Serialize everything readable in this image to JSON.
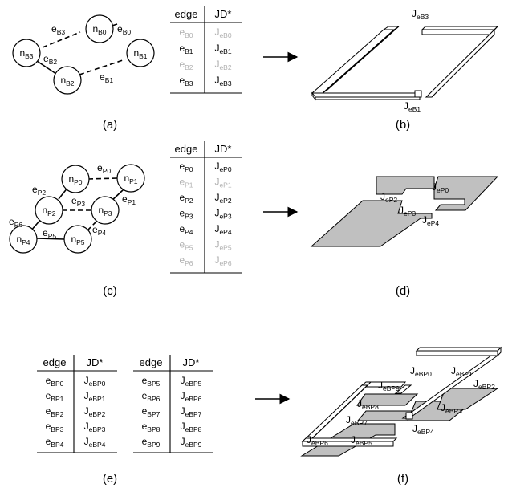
{
  "panels": {
    "a": "(a)",
    "b": "(b)",
    "c": "(c)",
    "d": "(d)",
    "e": "(e)",
    "f": "(f)"
  },
  "arrow_symbol": "→",
  "table_headers": {
    "edge": "edge",
    "jd": "JD*"
  },
  "graph_a": {
    "nodes": [
      {
        "base": "n",
        "sub": "B0"
      },
      {
        "base": "n",
        "sub": "B1"
      },
      {
        "base": "n",
        "sub": "B2"
      },
      {
        "base": "n",
        "sub": "B3"
      }
    ],
    "edges": [
      {
        "base": "e",
        "sub": "B3"
      },
      {
        "base": "e",
        "sub": "B0"
      },
      {
        "base": "e",
        "sub": "B2"
      },
      {
        "base": "e",
        "sub": "B1"
      }
    ]
  },
  "table_a": [
    {
      "edge_base": "e",
      "edge_sub": "B0",
      "jd_base": "J",
      "jd_sub": "eB0",
      "muted": true
    },
    {
      "edge_base": "e",
      "edge_sub": "B1",
      "jd_base": "J",
      "jd_sub": "eB1",
      "muted": false
    },
    {
      "edge_base": "e",
      "edge_sub": "B2",
      "jd_base": "J",
      "jd_sub": "eB2",
      "muted": true
    },
    {
      "edge_base": "e",
      "edge_sub": "B3",
      "jd_base": "J",
      "jd_sub": "eB3",
      "muted": false
    }
  ],
  "structure_b": {
    "labels": [
      {
        "base": "J",
        "sub": "eB3"
      },
      {
        "base": "J",
        "sub": "eB1"
      }
    ]
  },
  "graph_c": {
    "nodes": [
      {
        "base": "n",
        "sub": "P0"
      },
      {
        "base": "n",
        "sub": "P1"
      },
      {
        "base": "n",
        "sub": "P2"
      },
      {
        "base": "n",
        "sub": "P3"
      },
      {
        "base": "n",
        "sub": "P4"
      },
      {
        "base": "n",
        "sub": "P5"
      }
    ],
    "edges": [
      {
        "base": "e",
        "sub": "P0"
      },
      {
        "base": "e",
        "sub": "P2"
      },
      {
        "base": "e",
        "sub": "P3"
      },
      {
        "base": "e",
        "sub": "P1"
      },
      {
        "base": "e",
        "sub": "P6"
      },
      {
        "base": "e",
        "sub": "P4"
      },
      {
        "base": "e",
        "sub": "P5"
      }
    ]
  },
  "table_c": [
    {
      "edge_base": "e",
      "edge_sub": "P0",
      "jd_base": "J",
      "jd_sub": "eP0",
      "muted": false
    },
    {
      "edge_base": "e",
      "edge_sub": "P1",
      "jd_base": "J",
      "jd_sub": "eP1",
      "muted": true
    },
    {
      "edge_base": "e",
      "edge_sub": "P2",
      "jd_base": "J",
      "jd_sub": "eP2",
      "muted": false
    },
    {
      "edge_base": "e",
      "edge_sub": "P3",
      "jd_base": "J",
      "jd_sub": "eP3",
      "muted": false
    },
    {
      "edge_base": "e",
      "edge_sub": "P4",
      "jd_base": "J",
      "jd_sub": "eP4",
      "muted": false
    },
    {
      "edge_base": "e",
      "edge_sub": "P5",
      "jd_base": "J",
      "jd_sub": "eP5",
      "muted": true
    },
    {
      "edge_base": "e",
      "edge_sub": "P6",
      "jd_base": "J",
      "jd_sub": "eP6",
      "muted": true
    }
  ],
  "structure_d": {
    "labels": [
      {
        "base": "J",
        "sub": "eP0"
      },
      {
        "base": "J",
        "sub": "eP2"
      },
      {
        "base": "J",
        "sub": "eP3"
      },
      {
        "base": "J",
        "sub": "eP4"
      }
    ]
  },
  "table_e_left": [
    {
      "edge_base": "e",
      "edge_sub": "BP0",
      "jd_base": "J",
      "jd_sub": "eBP0"
    },
    {
      "edge_base": "e",
      "edge_sub": "BP1",
      "jd_base": "J",
      "jd_sub": "eBP1"
    },
    {
      "edge_base": "e",
      "edge_sub": "BP2",
      "jd_base": "J",
      "jd_sub": "eBP2"
    },
    {
      "edge_base": "e",
      "edge_sub": "BP3",
      "jd_base": "J",
      "jd_sub": "eBP3"
    },
    {
      "edge_base": "e",
      "edge_sub": "BP4",
      "jd_base": "J",
      "jd_sub": "eBP4"
    }
  ],
  "table_e_right": [
    {
      "edge_base": "e",
      "edge_sub": "BP5",
      "jd_base": "J",
      "jd_sub": "eBP5"
    },
    {
      "edge_base": "e",
      "edge_sub": "BP6",
      "jd_base": "J",
      "jd_sub": "eBP6"
    },
    {
      "edge_base": "e",
      "edge_sub": "BP7",
      "jd_base": "J",
      "jd_sub": "eBP7"
    },
    {
      "edge_base": "e",
      "edge_sub": "BP8",
      "jd_base": "J",
      "jd_sub": "eBP8"
    },
    {
      "edge_base": "e",
      "edge_sub": "BP9",
      "jd_base": "J",
      "jd_sub": "eBP9"
    }
  ],
  "structure_f": {
    "labels": [
      {
        "base": "J",
        "sub": "eBP0"
      },
      {
        "base": "J",
        "sub": "eBP1"
      },
      {
        "base": "J",
        "sub": "eBP2"
      },
      {
        "base": "J",
        "sub": "eBP9"
      },
      {
        "base": "J",
        "sub": "eBP8"
      },
      {
        "base": "J",
        "sub": "eBP3"
      },
      {
        "base": "J",
        "sub": "eBP7"
      },
      {
        "base": "J",
        "sub": "eBP4"
      },
      {
        "base": "J",
        "sub": "eBP6"
      },
      {
        "base": "J",
        "sub": "eBP5"
      }
    ]
  }
}
